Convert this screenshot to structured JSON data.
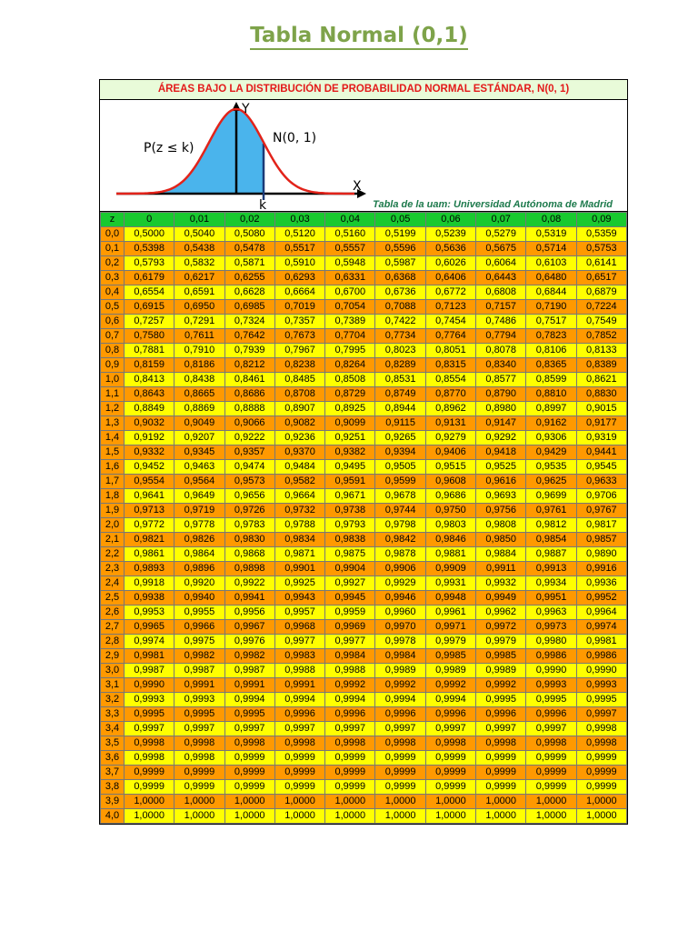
{
  "page": {
    "title": "Tabla Normal (0,1)"
  },
  "table": {
    "header": "ÁREAS BAJO LA DISTRIBUCIÓN DE PROBABILIDAD NORMAL ESTÁNDAR, N(0, 1)",
    "figure": {
      "y_label": "Y",
      "x_label": "X",
      "curve_label": "N(0, 1)",
      "area_label": "P(z ≤ k)",
      "k_label": "k",
      "credit": "Tabla de la uam: Universidad Autónoma de Madrid",
      "fill_color": "#4ab4ec",
      "curve_color": "#e2231a"
    },
    "columns": [
      "z",
      "0",
      "0,01",
      "0,02",
      "0,03",
      "0,04",
      "0,05",
      "0,06",
      "0,07",
      "0,08",
      "0,09"
    ],
    "rows": [
      [
        "0,0",
        "0,5000",
        "0,5040",
        "0,5080",
        "0,5120",
        "0,5160",
        "0,5199",
        "0,5239",
        "0,5279",
        "0,5319",
        "0,5359"
      ],
      [
        "0,1",
        "0,5398",
        "0,5438",
        "0,5478",
        "0,5517",
        "0,5557",
        "0,5596",
        "0,5636",
        "0,5675",
        "0,5714",
        "0,5753"
      ],
      [
        "0,2",
        "0,5793",
        "0,5832",
        "0,5871",
        "0,5910",
        "0,5948",
        "0,5987",
        "0,6026",
        "0,6064",
        "0,6103",
        "0,6141"
      ],
      [
        "0,3",
        "0,6179",
        "0,6217",
        "0,6255",
        "0,6293",
        "0,6331",
        "0,6368",
        "0,6406",
        "0,6443",
        "0,6480",
        "0,6517"
      ],
      [
        "0,4",
        "0,6554",
        "0,6591",
        "0,6628",
        "0,6664",
        "0,6700",
        "0,6736",
        "0,6772",
        "0,6808",
        "0,6844",
        "0,6879"
      ],
      [
        "0,5",
        "0,6915",
        "0,6950",
        "0,6985",
        "0,7019",
        "0,7054",
        "0,7088",
        "0,7123",
        "0,7157",
        "0,7190",
        "0,7224"
      ],
      [
        "0,6",
        "0,7257",
        "0,7291",
        "0,7324",
        "0,7357",
        "0,7389",
        "0,7422",
        "0,7454",
        "0,7486",
        "0,7517",
        "0,7549"
      ],
      [
        "0,7",
        "0,7580",
        "0,7611",
        "0,7642",
        "0,7673",
        "0,7704",
        "0,7734",
        "0,7764",
        "0,7794",
        "0,7823",
        "0,7852"
      ],
      [
        "0,8",
        "0,7881",
        "0,7910",
        "0,7939",
        "0,7967",
        "0,7995",
        "0,8023",
        "0,8051",
        "0,8078",
        "0,8106",
        "0,8133"
      ],
      [
        "0,9",
        "0,8159",
        "0,8186",
        "0,8212",
        "0,8238",
        "0,8264",
        "0,8289",
        "0,8315",
        "0,8340",
        "0,8365",
        "0,8389"
      ],
      [
        "1,0",
        "0,8413",
        "0,8438",
        "0,8461",
        "0,8485",
        "0,8508",
        "0,8531",
        "0,8554",
        "0,8577",
        "0,8599",
        "0,8621"
      ],
      [
        "1,1",
        "0,8643",
        "0,8665",
        "0,8686",
        "0,8708",
        "0,8729",
        "0,8749",
        "0,8770",
        "0,8790",
        "0,8810",
        "0,8830"
      ],
      [
        "1,2",
        "0,8849",
        "0,8869",
        "0,8888",
        "0,8907",
        "0,8925",
        "0,8944",
        "0,8962",
        "0,8980",
        "0,8997",
        "0,9015"
      ],
      [
        "1,3",
        "0,9032",
        "0,9049",
        "0,9066",
        "0,9082",
        "0,9099",
        "0,9115",
        "0,9131",
        "0,9147",
        "0,9162",
        "0,9177"
      ],
      [
        "1,4",
        "0,9192",
        "0,9207",
        "0,9222",
        "0,9236",
        "0,9251",
        "0,9265",
        "0,9279",
        "0,9292",
        "0,9306",
        "0,9319"
      ],
      [
        "1,5",
        "0,9332",
        "0,9345",
        "0,9357",
        "0,9370",
        "0,9382",
        "0,9394",
        "0,9406",
        "0,9418",
        "0,9429",
        "0,9441"
      ],
      [
        "1,6",
        "0,9452",
        "0,9463",
        "0,9474",
        "0,9484",
        "0,9495",
        "0,9505",
        "0,9515",
        "0,9525",
        "0,9535",
        "0,9545"
      ],
      [
        "1,7",
        "0,9554",
        "0,9564",
        "0,9573",
        "0,9582",
        "0,9591",
        "0,9599",
        "0,9608",
        "0,9616",
        "0,9625",
        "0,9633"
      ],
      [
        "1,8",
        "0,9641",
        "0,9649",
        "0,9656",
        "0,9664",
        "0,9671",
        "0,9678",
        "0,9686",
        "0,9693",
        "0,9699",
        "0,9706"
      ],
      [
        "1,9",
        "0,9713",
        "0,9719",
        "0,9726",
        "0,9732",
        "0,9738",
        "0,9744",
        "0,9750",
        "0,9756",
        "0,9761",
        "0,9767"
      ],
      [
        "2,0",
        "0,9772",
        "0,9778",
        "0,9783",
        "0,9788",
        "0,9793",
        "0,9798",
        "0,9803",
        "0,9808",
        "0,9812",
        "0,9817"
      ],
      [
        "2,1",
        "0,9821",
        "0,9826",
        "0,9830",
        "0,9834",
        "0,9838",
        "0,9842",
        "0,9846",
        "0,9850",
        "0,9854",
        "0,9857"
      ],
      [
        "2,2",
        "0,9861",
        "0,9864",
        "0,9868",
        "0,9871",
        "0,9875",
        "0,9878",
        "0,9881",
        "0,9884",
        "0,9887",
        "0,9890"
      ],
      [
        "2,3",
        "0,9893",
        "0,9896",
        "0,9898",
        "0,9901",
        "0,9904",
        "0,9906",
        "0,9909",
        "0,9911",
        "0,9913",
        "0,9916"
      ],
      [
        "2,4",
        "0,9918",
        "0,9920",
        "0,9922",
        "0,9925",
        "0,9927",
        "0,9929",
        "0,9931",
        "0,9932",
        "0,9934",
        "0,9936"
      ],
      [
        "2,5",
        "0,9938",
        "0,9940",
        "0,9941",
        "0,9943",
        "0,9945",
        "0,9946",
        "0,9948",
        "0,9949",
        "0,9951",
        "0,9952"
      ],
      [
        "2,6",
        "0,9953",
        "0,9955",
        "0,9956",
        "0,9957",
        "0,9959",
        "0,9960",
        "0,9961",
        "0,9962",
        "0,9963",
        "0,9964"
      ],
      [
        "2,7",
        "0,9965",
        "0,9966",
        "0,9967",
        "0,9968",
        "0,9969",
        "0,9970",
        "0,9971",
        "0,9972",
        "0,9973",
        "0,9974"
      ],
      [
        "2,8",
        "0,9974",
        "0,9975",
        "0,9976",
        "0,9977",
        "0,9977",
        "0,9978",
        "0,9979",
        "0,9979",
        "0,9980",
        "0,9981"
      ],
      [
        "2,9",
        "0,9981",
        "0,9982",
        "0,9982",
        "0,9983",
        "0,9984",
        "0,9984",
        "0,9985",
        "0,9985",
        "0,9986",
        "0,9986"
      ],
      [
        "3,0",
        "0,9987",
        "0,9987",
        "0,9987",
        "0,9988",
        "0,9988",
        "0,9989",
        "0,9989",
        "0,9989",
        "0,9990",
        "0,9990"
      ],
      [
        "3,1",
        "0,9990",
        "0,9991",
        "0,9991",
        "0,9991",
        "0,9992",
        "0,9992",
        "0,9992",
        "0,9992",
        "0,9993",
        "0,9993"
      ],
      [
        "3,2",
        "0,9993",
        "0,9993",
        "0,9994",
        "0,9994",
        "0,9994",
        "0,9994",
        "0,9994",
        "0,9995",
        "0,9995",
        "0,9995"
      ],
      [
        "3,3",
        "0,9995",
        "0,9995",
        "0,9995",
        "0,9996",
        "0,9996",
        "0,9996",
        "0,9996",
        "0,9996",
        "0,9996",
        "0,9997"
      ],
      [
        "3,4",
        "0,9997",
        "0,9997",
        "0,9997",
        "0,9997",
        "0,9997",
        "0,9997",
        "0,9997",
        "0,9997",
        "0,9997",
        "0,9998"
      ],
      [
        "3,5",
        "0,9998",
        "0,9998",
        "0,9998",
        "0,9998",
        "0,9998",
        "0,9998",
        "0,9998",
        "0,9998",
        "0,9998",
        "0,9998"
      ],
      [
        "3,6",
        "0,9998",
        "0,9998",
        "0,9999",
        "0,9999",
        "0,9999",
        "0,9999",
        "0,9999",
        "0,9999",
        "0,9999",
        "0,9999"
      ],
      [
        "3,7",
        "0,9999",
        "0,9999",
        "0,9999",
        "0,9999",
        "0,9999",
        "0,9999",
        "0,9999",
        "0,9999",
        "0,9999",
        "0,9999"
      ],
      [
        "3,8",
        "0,9999",
        "0,9999",
        "0,9999",
        "0,9999",
        "0,9999",
        "0,9999",
        "0,9999",
        "0,9999",
        "0,9999",
        "0,9999"
      ],
      [
        "3,9",
        "1,0000",
        "1,0000",
        "1,0000",
        "1,0000",
        "1,0000",
        "1,0000",
        "1,0000",
        "1,0000",
        "1,0000",
        "1,0000"
      ],
      [
        "4,0",
        "1,0000",
        "1,0000",
        "1,0000",
        "1,0000",
        "1,0000",
        "1,0000",
        "1,0000",
        "1,0000",
        "1,0000",
        "1,0000"
      ]
    ]
  }
}
